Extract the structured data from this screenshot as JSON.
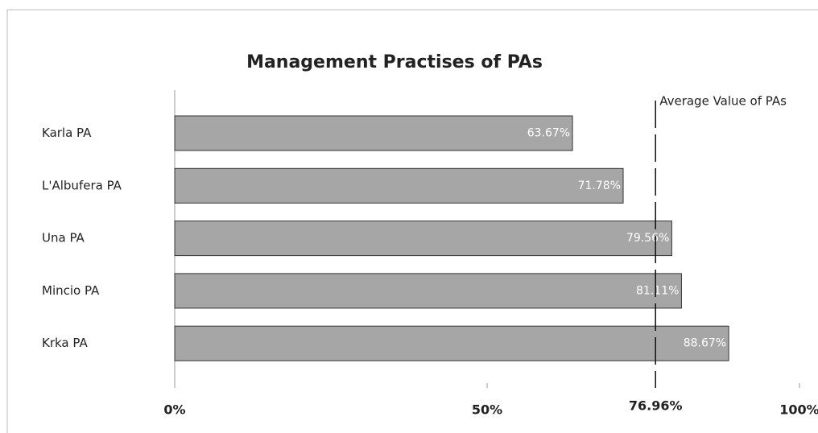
{
  "chart_data": {
    "type": "bar",
    "orientation": "horizontal",
    "title": "Management Practises of PAs",
    "categories": [
      "Karla PA",
      "L'Albufera PA",
      "Una PA",
      "Mincio PA",
      "Krka PA"
    ],
    "values": [
      63.67,
      71.78,
      79.56,
      81.11,
      88.67
    ],
    "value_labels": [
      "63.67%",
      "71.78%",
      "79.56%",
      "81.11%",
      "88.67%"
    ],
    "color": "#a6a6a6",
    "xlim": [
      0,
      100
    ],
    "xticks": [
      {
        "value": 0,
        "label": "0%"
      },
      {
        "value": 50,
        "label": "50%"
      },
      {
        "value": 100,
        "label": "100%"
      }
    ],
    "average": {
      "name": "Average Value of PAs",
      "value": 76.96,
      "label": "76.96%"
    }
  }
}
